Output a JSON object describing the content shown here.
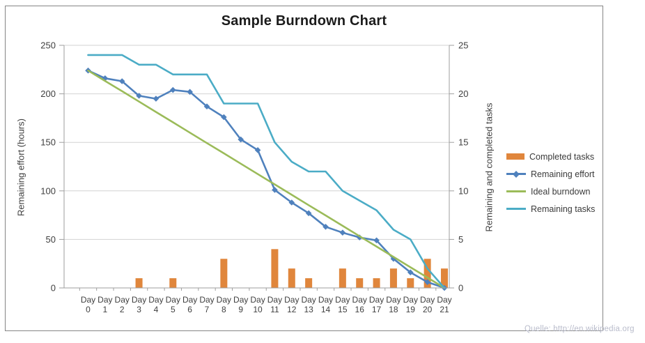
{
  "title": "Sample Burndown Chart",
  "source": "Quelle: http://en.wikipedia.org",
  "colors": {
    "completed_tasks": "#E0863C",
    "remaining_effort": "#4F81BD",
    "ideal_burndown": "#9BBB59",
    "remaining_tasks": "#4BACC6",
    "gridline": "#D2D2D2",
    "axis_line": "#9E9E9E",
    "tick_text": "#3F3F3F",
    "frame_border": "#858585",
    "source_text": "#B9BCCB"
  },
  "axes": {
    "left": {
      "title": "Remaining effort (hours)",
      "tick_labels": [
        "0",
        "50",
        "100",
        "150",
        "200",
        "250"
      ]
    },
    "right": {
      "title": "Remaining and completed tasks",
      "tick_labels": [
        "0",
        "5",
        "10",
        "15",
        "20",
        "25"
      ]
    }
  },
  "legend": {
    "items": [
      {
        "label": "Completed tasks",
        "swatch": "bar"
      },
      {
        "label": "Remaining effort",
        "swatch": "line-diamond"
      },
      {
        "label": "Ideal burndown",
        "swatch": "line"
      },
      {
        "label": "Remaining tasks",
        "swatch": "line"
      }
    ]
  },
  "chart_data": {
    "type": "combo",
    "title": "Sample Burndown Chart",
    "categories": [
      "Day 0",
      "Day 1",
      "Day 2",
      "Day 3",
      "Day 4",
      "Day 5",
      "Day 6",
      "Day 7",
      "Day 8",
      "Day 9",
      "Day 10",
      "Day 11",
      "Day 12",
      "Day 13",
      "Day 14",
      "Day 15",
      "Day 16",
      "Day 17",
      "Day 18",
      "Day 19",
      "Day 20",
      "Day 21"
    ],
    "left_axis": {
      "label": "Remaining effort (hours)",
      "range": [
        0,
        250
      ],
      "tick_step": 50
    },
    "right_axis": {
      "label": "Remaining and completed tasks",
      "range": [
        0,
        25
      ],
      "tick_step": 5
    },
    "grid": true,
    "legend_position": "right",
    "series": [
      {
        "name": "Completed tasks",
        "type": "bar",
        "axis": "right",
        "color_key": "completed_tasks",
        "values": [
          0,
          0,
          0,
          1,
          0,
          1,
          0,
          0,
          3,
          0,
          0,
          4,
          2,
          1,
          0,
          2,
          1,
          1,
          2,
          1,
          3,
          2
        ]
      },
      {
        "name": "Remaining effort",
        "type": "line",
        "marker": "diamond",
        "axis": "left",
        "color_key": "remaining_effort",
        "values": [
          224,
          216,
          213,
          198,
          195,
          204,
          202,
          187,
          176,
          153,
          142,
          101,
          88,
          77,
          63,
          57,
          52,
          49,
          30,
          16,
          6,
          0
        ]
      },
      {
        "name": "Ideal burndown",
        "type": "line",
        "axis": "left",
        "color_key": "ideal_burndown",
        "values": [
          224,
          213.3,
          202.7,
          192,
          181.3,
          170.7,
          160,
          149.3,
          138.7,
          128,
          117.3,
          106.7,
          96,
          85.3,
          74.7,
          64,
          53.3,
          42.7,
          32,
          21.3,
          10.7,
          0
        ]
      },
      {
        "name": "Remaining tasks",
        "type": "line",
        "axis": "right",
        "color_key": "remaining_tasks",
        "values": [
          24,
          24,
          24,
          23,
          23,
          22,
          22,
          22,
          19,
          19,
          19,
          15,
          13,
          12,
          12,
          10,
          9,
          8,
          6,
          5,
          2,
          0
        ]
      }
    ]
  }
}
